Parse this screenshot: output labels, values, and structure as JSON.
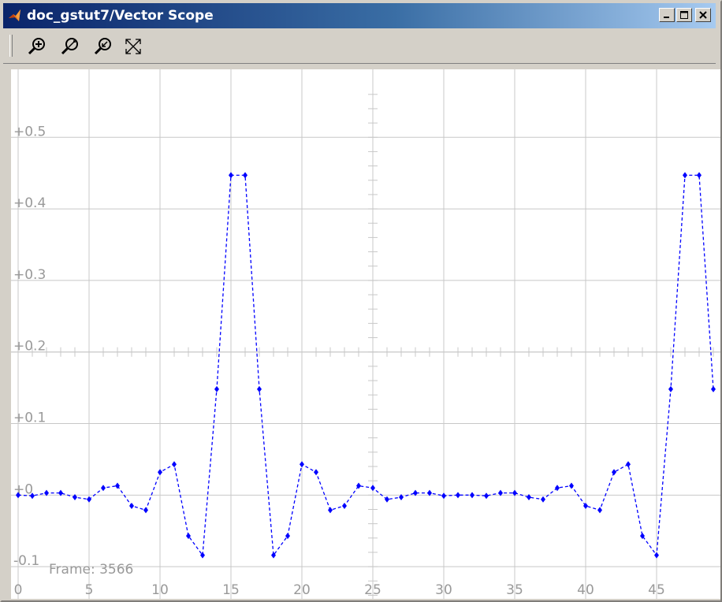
{
  "window": {
    "title": "doc_gstut7/Vector Scope",
    "minimize_icon": "minimize-icon",
    "maximize_icon": "maximize-icon",
    "close_icon": "close-icon"
  },
  "toolbar": {
    "buttons": [
      {
        "name": "zoom-in-icon"
      },
      {
        "name": "zoom-x-icon"
      },
      {
        "name": "zoom-y-icon"
      },
      {
        "name": "autoscale-icon"
      }
    ]
  },
  "colors": {
    "series": "#0000ff",
    "grid": "#c8c8c8",
    "labels": "#999999"
  },
  "chart_data": {
    "type": "line",
    "line_style": "dashed",
    "marker": "diamond",
    "grid": true,
    "xlim": [
      -0.5,
      49.5
    ],
    "ylim": [
      -0.145,
      0.595
    ],
    "xticks": [
      0,
      5,
      10,
      15,
      20,
      25,
      30,
      35,
      40,
      45
    ],
    "xtick_labels": [
      "0",
      "5",
      "10",
      "15",
      "20",
      "25",
      "30",
      "35",
      "40",
      "45"
    ],
    "yticks": [
      0.5,
      0.4,
      0.3,
      0.2,
      0.1,
      0,
      -0.1
    ],
    "ytick_labels": [
      "+0.5",
      "+0.4",
      "+0.3",
      "+0.2",
      "+0.1",
      "+0",
      "-0.1"
    ],
    "frame_label": "Frame: 3566",
    "series": [
      {
        "x": [
          0,
          1,
          2,
          3,
          4,
          5,
          6,
          7,
          8,
          9,
          10,
          11,
          12,
          13,
          14,
          15,
          16,
          17,
          18,
          19,
          20,
          21,
          22,
          23,
          24,
          25,
          26,
          27,
          28,
          29,
          30,
          31,
          32,
          33,
          34,
          35,
          36,
          37,
          38,
          39,
          40,
          41,
          42,
          43,
          44,
          45,
          46,
          47,
          48,
          49
        ],
        "values": [
          0.0,
          -0.001,
          0.003,
          0.003,
          -0.003,
          -0.006,
          0.01,
          0.013,
          -0.015,
          -0.021,
          0.032,
          0.043,
          -0.057,
          -0.084,
          0.148,
          0.447,
          0.447,
          0.148,
          -0.084,
          -0.057,
          0.043,
          0.032,
          -0.021,
          -0.015,
          0.013,
          0.01,
          -0.006,
          -0.003,
          0.003,
          0.003,
          -0.001,
          0.0,
          0.0,
          -0.001,
          0.003,
          0.003,
          -0.003,
          -0.006,
          0.01,
          0.013,
          -0.015,
          -0.021,
          0.032,
          0.043,
          -0.057,
          -0.084,
          0.148,
          0.447,
          0.447,
          0.148
        ]
      }
    ]
  }
}
